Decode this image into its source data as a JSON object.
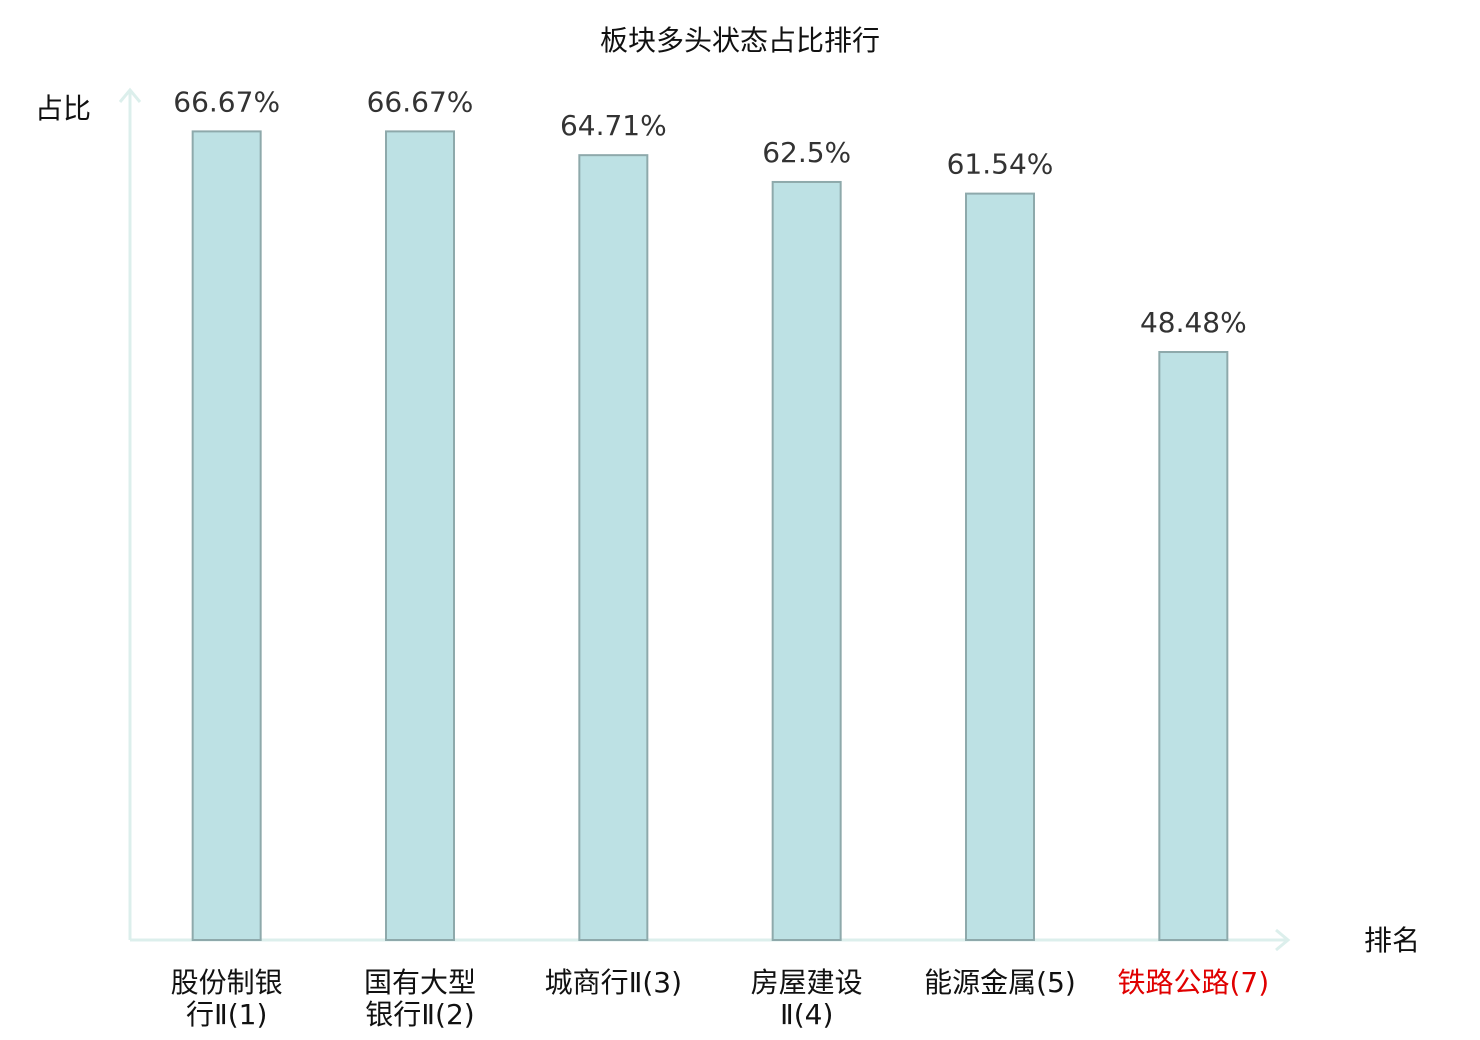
{
  "chart_data": {
    "type": "bar",
    "title": "板块多头状态占比排行",
    "y_label": "占比",
    "x_label": "排名",
    "categories": [
      [
        "股份制银",
        "行Ⅱ(1)"
      ],
      [
        "国有大型",
        "银行Ⅱ(2)"
      ],
      [
        "城商行Ⅱ(3)"
      ],
      [
        "房屋建设",
        "Ⅱ(4)"
      ],
      [
        "能源金属(5)"
      ],
      [
        "铁路公路(7)"
      ]
    ],
    "category_colors": [
      "#111111",
      "#111111",
      "#111111",
      "#111111",
      "#111111",
      "#e00000"
    ],
    "values": [
      66.67,
      66.67,
      64.71,
      62.5,
      61.54,
      48.48
    ],
    "value_labels": [
      "66.67%",
      "66.67%",
      "64.71%",
      "62.5%",
      "61.54%",
      "48.48%"
    ],
    "color": "#bde1e4",
    "edge_color": "#8ea9ab",
    "ylim": [
      0,
      70
    ]
  }
}
